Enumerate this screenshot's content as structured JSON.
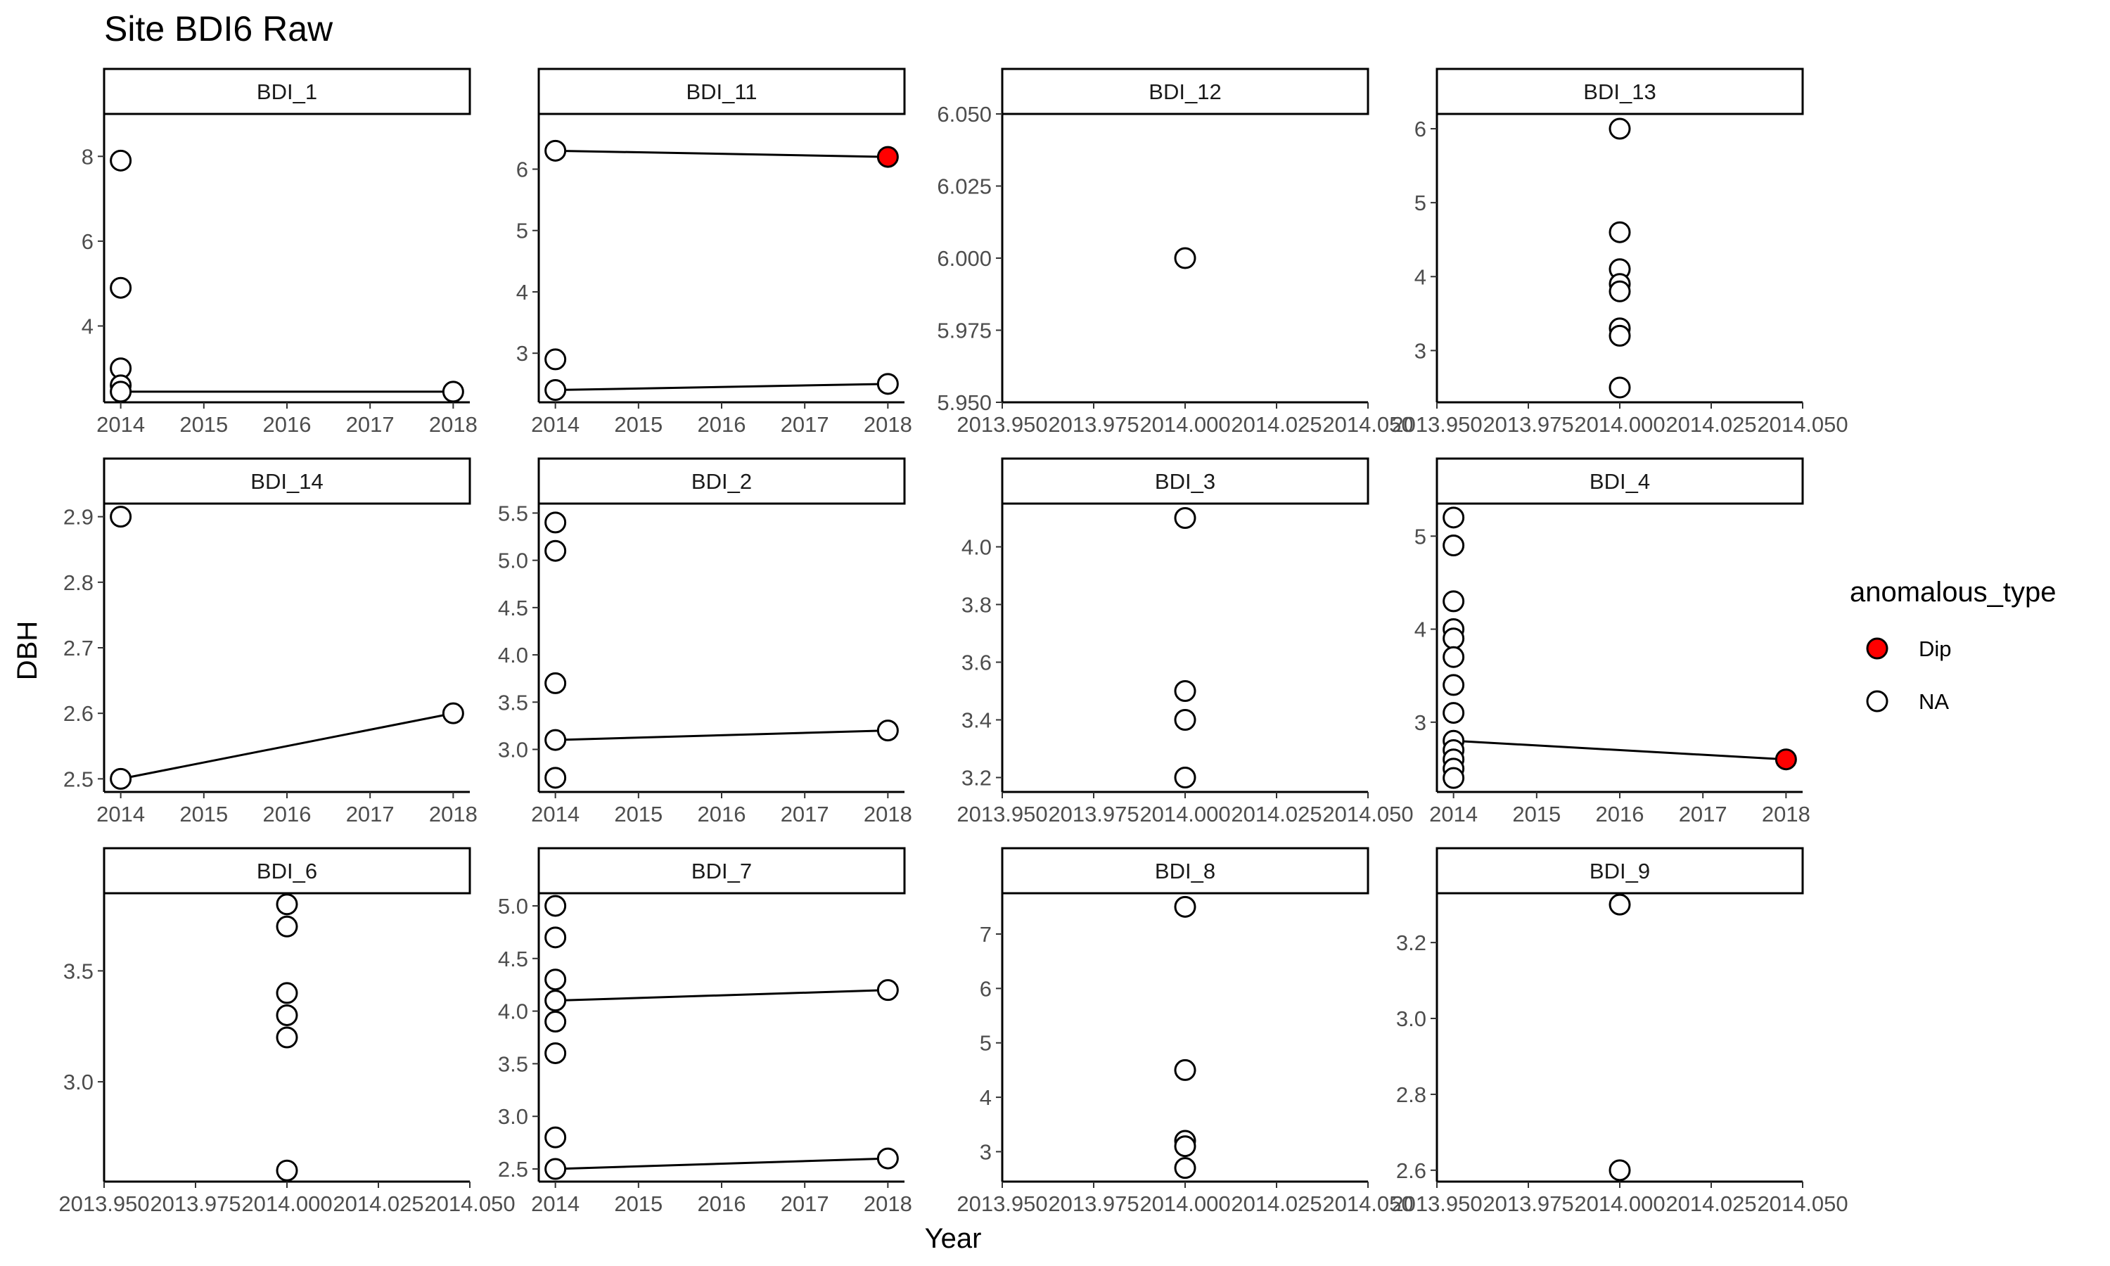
{
  "chart_data": {
    "type": "scatter",
    "title": "Site BDI6 Raw",
    "xlabel": "Year",
    "ylabel": "DBH",
    "grid": false,
    "legend": {
      "title": "anomalous_type",
      "position": "right",
      "entries": [
        {
          "label": "Dip",
          "color": "#ff0000"
        },
        {
          "label": "NA",
          "color": "#ffffff"
        }
      ]
    },
    "panels": [
      {
        "label": "BDI_1",
        "xlim": [
          2013.8,
          2018.2
        ],
        "ylim": [
          2.2,
          9.0
        ],
        "xticks": [
          "2014",
          "2015",
          "2016",
          "2017",
          "2018"
        ],
        "xtick_values": [
          2014,
          2015,
          2016,
          2017,
          2018
        ],
        "yticks": [
          "4",
          "6",
          "8"
        ],
        "ytick_values": [
          4,
          6,
          8
        ],
        "points": [
          {
            "x": 2014,
            "y": 7.9,
            "type": "NA"
          },
          {
            "x": 2014,
            "y": 4.9,
            "type": "NA"
          },
          {
            "x": 2014,
            "y": 3.0,
            "type": "NA"
          },
          {
            "x": 2014,
            "y": 2.6,
            "type": "NA"
          },
          {
            "x": 2014,
            "y": 2.45,
            "type": "NA"
          },
          {
            "x": 2018,
            "y": 2.45,
            "type": "NA"
          }
        ],
        "lines": [
          [
            [
              2014,
              2.45
            ],
            [
              2018,
              2.45
            ]
          ]
        ]
      },
      {
        "label": "BDI_11",
        "xlim": [
          2013.8,
          2018.2
        ],
        "ylim": [
          2.2,
          6.9
        ],
        "xticks": [
          "2014",
          "2015",
          "2016",
          "2017",
          "2018"
        ],
        "xtick_values": [
          2014,
          2015,
          2016,
          2017,
          2018
        ],
        "yticks": [
          "3",
          "4",
          "5",
          "6"
        ],
        "ytick_values": [
          3,
          4,
          5,
          6
        ],
        "points": [
          {
            "x": 2014,
            "y": 6.3,
            "type": "NA"
          },
          {
            "x": 2014,
            "y": 2.9,
            "type": "NA"
          },
          {
            "x": 2014,
            "y": 2.4,
            "type": "NA"
          },
          {
            "x": 2018,
            "y": 6.2,
            "type": "Dip"
          },
          {
            "x": 2018,
            "y": 2.5,
            "type": "NA"
          }
        ],
        "lines": [
          [
            [
              2014,
              6.3
            ],
            [
              2018,
              6.2
            ]
          ],
          [
            [
              2014,
              2.4
            ],
            [
              2018,
              2.5
            ]
          ]
        ]
      },
      {
        "label": "BDI_12",
        "xlim": [
          2013.95,
          2014.05
        ],
        "ylim": [
          5.95,
          6.05
        ],
        "xticks": [
          "2013.950",
          "2013.975",
          "2014.000",
          "2014.025",
          "2014.050"
        ],
        "xtick_values": [
          2013.95,
          2013.975,
          2014.0,
          2014.025,
          2014.05
        ],
        "yticks": [
          "5.950",
          "5.975",
          "6.000",
          "6.025",
          "6.050"
        ],
        "ytick_values": [
          5.95,
          5.975,
          6.0,
          6.025,
          6.05
        ],
        "points": [
          {
            "x": 2014,
            "y": 6.0,
            "type": "NA"
          }
        ],
        "lines": []
      },
      {
        "label": "BDI_13",
        "xlim": [
          2013.95,
          2014.05
        ],
        "ylim": [
          2.3,
          6.2
        ],
        "xticks": [
          "2013.950",
          "2013.975",
          "2014.000",
          "2014.025",
          "2014.050"
        ],
        "xtick_values": [
          2013.95,
          2013.975,
          2014.0,
          2014.025,
          2014.05
        ],
        "yticks": [
          "3",
          "4",
          "5",
          "6"
        ],
        "ytick_values": [
          3,
          4,
          5,
          6
        ],
        "points": [
          {
            "x": 2014,
            "y": 6.0,
            "type": "NA"
          },
          {
            "x": 2014,
            "y": 4.6,
            "type": "NA"
          },
          {
            "x": 2014,
            "y": 4.1,
            "type": "NA"
          },
          {
            "x": 2014,
            "y": 3.9,
            "type": "NA"
          },
          {
            "x": 2014,
            "y": 3.8,
            "type": "NA"
          },
          {
            "x": 2014,
            "y": 3.3,
            "type": "NA"
          },
          {
            "x": 2014,
            "y": 3.2,
            "type": "NA"
          },
          {
            "x": 2014,
            "y": 2.5,
            "type": "NA"
          }
        ],
        "lines": []
      },
      {
        "label": "BDI_14",
        "xlim": [
          2013.8,
          2018.2
        ],
        "ylim": [
          2.48,
          2.92
        ],
        "xticks": [
          "2014",
          "2015",
          "2016",
          "2017",
          "2018"
        ],
        "xtick_values": [
          2014,
          2015,
          2016,
          2017,
          2018
        ],
        "yticks": [
          "2.5",
          "2.6",
          "2.7",
          "2.8",
          "2.9"
        ],
        "ytick_values": [
          2.5,
          2.6,
          2.7,
          2.8,
          2.9
        ],
        "points": [
          {
            "x": 2014,
            "y": 2.9,
            "type": "NA"
          },
          {
            "x": 2014,
            "y": 2.5,
            "type": "NA"
          },
          {
            "x": 2018,
            "y": 2.6,
            "type": "NA"
          }
        ],
        "lines": [
          [
            [
              2014,
              2.5
            ],
            [
              2018,
              2.6
            ]
          ]
        ]
      },
      {
        "label": "BDI_2",
        "xlim": [
          2013.8,
          2018.2
        ],
        "ylim": [
          2.55,
          5.6
        ],
        "xticks": [
          "2014",
          "2015",
          "2016",
          "2017",
          "2018"
        ],
        "xtick_values": [
          2014,
          2015,
          2016,
          2017,
          2018
        ],
        "yticks": [
          "3.0",
          "3.5",
          "4.0",
          "4.5",
          "5.0",
          "5.5"
        ],
        "ytick_values": [
          3.0,
          3.5,
          4.0,
          4.5,
          5.0,
          5.5
        ],
        "points": [
          {
            "x": 2014,
            "y": 5.4,
            "type": "NA"
          },
          {
            "x": 2014,
            "y": 5.1,
            "type": "NA"
          },
          {
            "x": 2014,
            "y": 3.7,
            "type": "NA"
          },
          {
            "x": 2014,
            "y": 3.1,
            "type": "NA"
          },
          {
            "x": 2014,
            "y": 2.7,
            "type": "NA"
          },
          {
            "x": 2018,
            "y": 3.2,
            "type": "NA"
          }
        ],
        "lines": [
          [
            [
              2014,
              3.1
            ],
            [
              2018,
              3.2
            ]
          ]
        ]
      },
      {
        "label": "BDI_3",
        "xlim": [
          2013.95,
          2014.05
        ],
        "ylim": [
          3.15,
          4.15
        ],
        "xticks": [
          "2013.950",
          "2013.975",
          "2014.000",
          "2014.025",
          "2014.050"
        ],
        "xtick_values": [
          2013.95,
          2013.975,
          2014.0,
          2014.025,
          2014.05
        ],
        "yticks": [
          "3.2",
          "3.4",
          "3.6",
          "3.8",
          "4.0"
        ],
        "ytick_values": [
          3.2,
          3.4,
          3.6,
          3.8,
          4.0
        ],
        "points": [
          {
            "x": 2014,
            "y": 4.1,
            "type": "NA"
          },
          {
            "x": 2014,
            "y": 3.5,
            "type": "NA"
          },
          {
            "x": 2014,
            "y": 3.4,
            "type": "NA"
          },
          {
            "x": 2014,
            "y": 3.2,
            "type": "NA"
          }
        ],
        "lines": []
      },
      {
        "label": "BDI_4",
        "xlim": [
          2013.8,
          2018.2
        ],
        "ylim": [
          2.25,
          5.35
        ],
        "xticks": [
          "2014",
          "2015",
          "2016",
          "2017",
          "2018"
        ],
        "xtick_values": [
          2014,
          2015,
          2016,
          2017,
          2018
        ],
        "yticks": [
          "3",
          "4",
          "5"
        ],
        "ytick_values": [
          3,
          4,
          5
        ],
        "points": [
          {
            "x": 2014,
            "y": 5.2,
            "type": "NA"
          },
          {
            "x": 2014,
            "y": 4.9,
            "type": "NA"
          },
          {
            "x": 2014,
            "y": 4.3,
            "type": "NA"
          },
          {
            "x": 2014,
            "y": 4.0,
            "type": "NA"
          },
          {
            "x": 2014,
            "y": 3.9,
            "type": "NA"
          },
          {
            "x": 2014,
            "y": 3.7,
            "type": "NA"
          },
          {
            "x": 2014,
            "y": 3.4,
            "type": "NA"
          },
          {
            "x": 2014,
            "y": 3.1,
            "type": "NA"
          },
          {
            "x": 2014,
            "y": 2.8,
            "type": "NA"
          },
          {
            "x": 2014,
            "y": 2.7,
            "type": "NA"
          },
          {
            "x": 2014,
            "y": 2.6,
            "type": "NA"
          },
          {
            "x": 2014,
            "y": 2.5,
            "type": "NA"
          },
          {
            "x": 2014,
            "y": 2.4,
            "type": "NA"
          },
          {
            "x": 2018,
            "y": 2.6,
            "type": "Dip"
          }
        ],
        "lines": [
          [
            [
              2014,
              2.8
            ],
            [
              2018,
              2.6
            ]
          ]
        ]
      },
      {
        "label": "BDI_6",
        "xlim": [
          2013.95,
          2014.05
        ],
        "ylim": [
          2.55,
          3.85
        ],
        "xticks": [
          "2013.950",
          "2013.975",
          "2014.000",
          "2014.025",
          "2014.050"
        ],
        "xtick_values": [
          2013.95,
          2013.975,
          2014.0,
          2014.025,
          2014.05
        ],
        "yticks": [
          "3.0",
          "3.5"
        ],
        "ytick_values": [
          3.0,
          3.5
        ],
        "points": [
          {
            "x": 2014,
            "y": 3.8,
            "type": "NA"
          },
          {
            "x": 2014,
            "y": 3.7,
            "type": "NA"
          },
          {
            "x": 2014,
            "y": 3.4,
            "type": "NA"
          },
          {
            "x": 2014,
            "y": 3.3,
            "type": "NA"
          },
          {
            "x": 2014,
            "y": 3.2,
            "type": "NA"
          },
          {
            "x": 2014,
            "y": 2.6,
            "type": "NA"
          }
        ],
        "lines": []
      },
      {
        "label": "BDI_7",
        "xlim": [
          2013.8,
          2018.2
        ],
        "ylim": [
          2.38,
          5.12
        ],
        "xticks": [
          "2014",
          "2015",
          "2016",
          "2017",
          "2018"
        ],
        "xtick_values": [
          2014,
          2015,
          2016,
          2017,
          2018
        ],
        "yticks": [
          "2.5",
          "3.0",
          "3.5",
          "4.0",
          "4.5",
          "5.0"
        ],
        "ytick_values": [
          2.5,
          3.0,
          3.5,
          4.0,
          4.5,
          5.0
        ],
        "points": [
          {
            "x": 2014,
            "y": 5.0,
            "type": "NA"
          },
          {
            "x": 2014,
            "y": 4.7,
            "type": "NA"
          },
          {
            "x": 2014,
            "y": 4.3,
            "type": "NA"
          },
          {
            "x": 2014,
            "y": 4.1,
            "type": "NA"
          },
          {
            "x": 2014,
            "y": 3.9,
            "type": "NA"
          },
          {
            "x": 2014,
            "y": 3.6,
            "type": "NA"
          },
          {
            "x": 2014,
            "y": 2.8,
            "type": "NA"
          },
          {
            "x": 2014,
            "y": 2.5,
            "type": "NA"
          },
          {
            "x": 2018,
            "y": 4.2,
            "type": "NA"
          },
          {
            "x": 2018,
            "y": 2.6,
            "type": "NA"
          }
        ],
        "lines": [
          [
            [
              2014,
              4.1
            ],
            [
              2018,
              4.2
            ]
          ],
          [
            [
              2014,
              2.5
            ],
            [
              2018,
              2.6
            ]
          ]
        ]
      },
      {
        "label": "BDI_8",
        "xlim": [
          2013.95,
          2014.05
        ],
        "ylim": [
          2.45,
          7.75
        ],
        "xticks": [
          "2013.950",
          "2013.975",
          "2014.000",
          "2014.025",
          "2014.050"
        ],
        "xtick_values": [
          2013.95,
          2013.975,
          2014.0,
          2014.025,
          2014.05
        ],
        "yticks": [
          "3",
          "4",
          "5",
          "6",
          "7"
        ],
        "ytick_values": [
          3,
          4,
          5,
          6,
          7
        ],
        "points": [
          {
            "x": 2014,
            "y": 7.5,
            "type": "NA"
          },
          {
            "x": 2014,
            "y": 4.5,
            "type": "NA"
          },
          {
            "x": 2014,
            "y": 3.2,
            "type": "NA"
          },
          {
            "x": 2014,
            "y": 3.1,
            "type": "NA"
          },
          {
            "x": 2014,
            "y": 2.7,
            "type": "NA"
          }
        ],
        "lines": []
      },
      {
        "label": "BDI_9",
        "xlim": [
          2013.95,
          2014.05
        ],
        "ylim": [
          2.57,
          3.33
        ],
        "xticks": [
          "2013.950",
          "2013.975",
          "2014.000",
          "2014.025",
          "2014.050"
        ],
        "xtick_values": [
          2013.95,
          2013.975,
          2014.0,
          2014.025,
          2014.05
        ],
        "yticks": [
          "2.6",
          "2.8",
          "3.0",
          "3.2"
        ],
        "ytick_values": [
          2.6,
          2.8,
          3.0,
          3.2
        ],
        "points": [
          {
            "x": 2014,
            "y": 3.3,
            "type": "NA"
          },
          {
            "x": 2014,
            "y": 2.6,
            "type": "NA"
          }
        ],
        "lines": []
      }
    ]
  }
}
